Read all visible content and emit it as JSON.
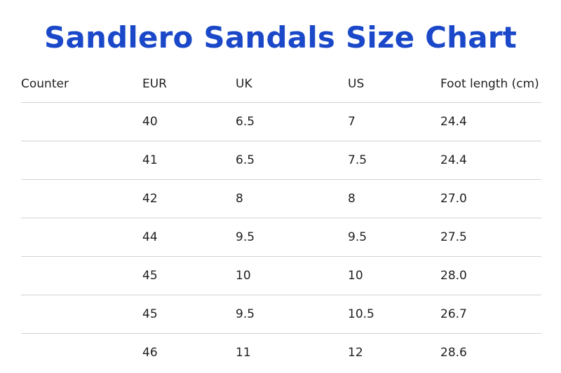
{
  "title": "Sandlero Sandals Size Chart",
  "table": {
    "headers": [
      "Counter",
      "EUR",
      "UK",
      "US",
      "Foot length (cm)"
    ],
    "rows": [
      [
        "",
        "40",
        "6.5",
        "7",
        "24.4"
      ],
      [
        "",
        "41",
        "6.5",
        "7.5",
        "24.4"
      ],
      [
        "",
        "42",
        "8",
        "8",
        "27.0"
      ],
      [
        "",
        "44",
        "9.5",
        "9.5",
        "27.5"
      ],
      [
        "",
        "45",
        "10",
        "10",
        "28.0"
      ],
      [
        "",
        "45",
        "9.5",
        "10.5",
        "26.7"
      ],
      [
        "",
        "46",
        "11",
        "12",
        "28.6"
      ]
    ]
  },
  "colors": {
    "title": "#1a48c9",
    "text": "#1f1f1f",
    "divider": "#d2d2d2"
  }
}
